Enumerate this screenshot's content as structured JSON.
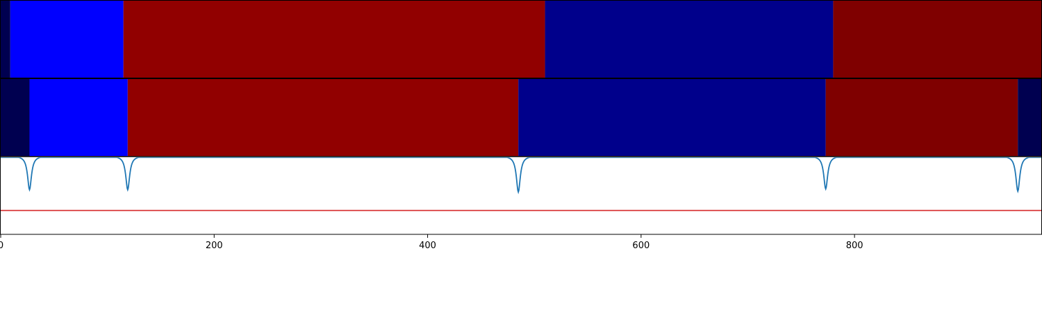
{
  "chart_data": [
    {
      "type": "segments",
      "panel": "top",
      "xlim": [
        0,
        975
      ],
      "segments": [
        {
          "start": 0,
          "end": 9,
          "color": "#000050"
        },
        {
          "start": 9,
          "end": 115,
          "color": "#0000ff"
        },
        {
          "start": 115,
          "end": 510,
          "color": "#910000"
        },
        {
          "start": 510,
          "end": 780,
          "color": "#00008b"
        },
        {
          "start": 780,
          "end": 975,
          "color": "#7f0000"
        }
      ]
    },
    {
      "type": "segments",
      "panel": "middle",
      "xlim": [
        0,
        975
      ],
      "segments": [
        {
          "start": 0,
          "end": 27,
          "color": "#000050"
        },
        {
          "start": 27,
          "end": 119,
          "color": "#0000ff"
        },
        {
          "start": 119,
          "end": 485,
          "color": "#910000"
        },
        {
          "start": 485,
          "end": 773,
          "color": "#00008b"
        },
        {
          "start": 773,
          "end": 953,
          "color": "#7f0000"
        },
        {
          "start": 953,
          "end": 975,
          "color": "#000050"
        }
      ]
    },
    {
      "type": "line",
      "panel": "bottom",
      "xlim": [
        0,
        975
      ],
      "ylim": [
        0,
        1
      ],
      "x_ticks": [
        0,
        200,
        400,
        600,
        800
      ],
      "x_tick_labels": [
        "0",
        "200",
        "400",
        "600",
        "800"
      ],
      "series": [
        {
          "color": "#1f77b4",
          "baseline": 1.0,
          "dips": [
            {
              "x": 27,
              "depth": 0.44
            },
            {
              "x": 119,
              "depth": 0.44
            },
            {
              "x": 485,
              "depth": 0.47
            },
            {
              "x": 773,
              "depth": 0.43
            },
            {
              "x": 953,
              "depth": 0.46
            }
          ]
        }
      ],
      "threshold": {
        "y": 0.31,
        "color": "#d62728"
      }
    }
  ]
}
